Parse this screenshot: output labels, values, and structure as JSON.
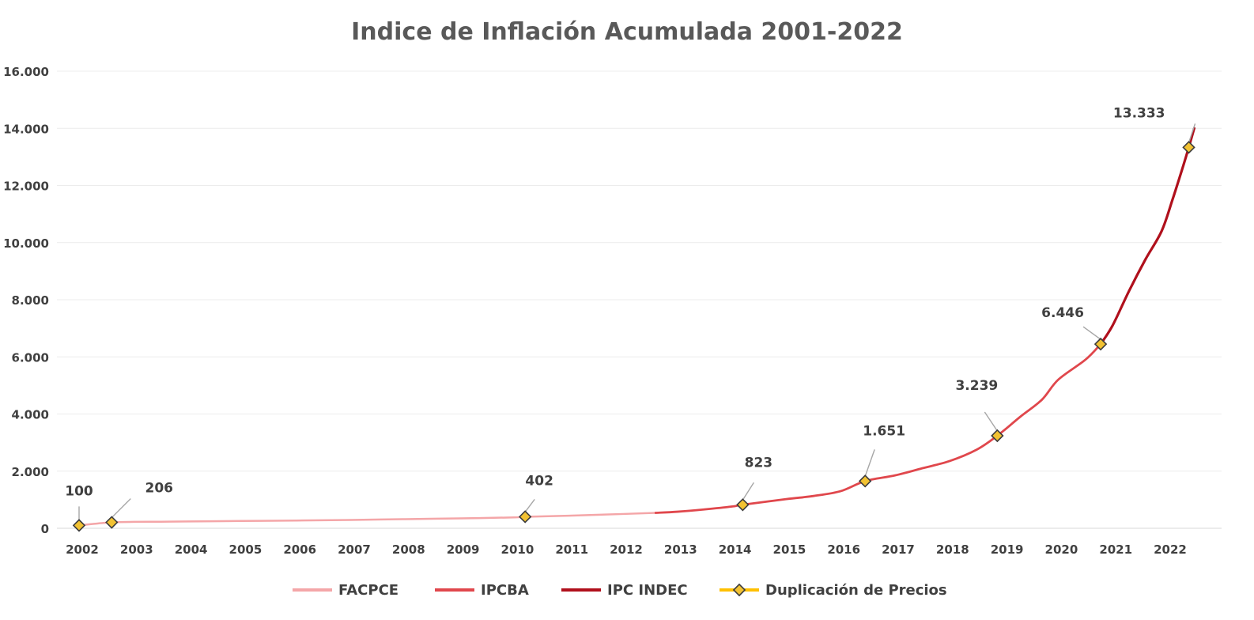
{
  "chart_data": {
    "type": "line",
    "title": "Indice de Inflación Acumulada 2001-2022",
    "xlabel": "",
    "ylabel": "",
    "ylim": [
      0,
      16000
    ],
    "xlim": [
      2002,
      2023
    ],
    "grid": true,
    "legend_position": "bottom",
    "y_ticks": [
      0,
      2000,
      4000,
      6000,
      8000,
      10000,
      12000,
      14000,
      16000
    ],
    "y_tick_labels": [
      "0",
      "2.000",
      "4.000",
      "6.000",
      "8.000",
      "10.000",
      "12.000",
      "14.000",
      "16.000"
    ],
    "x_ticks": [
      2002,
      2003,
      2004,
      2005,
      2006,
      2007,
      2008,
      2009,
      2010,
      2011,
      2012,
      2013,
      2014,
      2015,
      2016,
      2017,
      2018,
      2019,
      2020,
      2021,
      2022
    ],
    "x_tick_labels": [
      "2002",
      "2003",
      "2004",
      "2005",
      "2006",
      "2007",
      "2008",
      "2009",
      "2010",
      "2011",
      "2012",
      "2013",
      "2014",
      "2015",
      "2016",
      "2017",
      "2018",
      "2019",
      "2020",
      "2021",
      "2022"
    ],
    "series": [
      {
        "name": "FACPCE",
        "color": "#f4a6a8",
        "x": [
          2002.0,
          2002.3,
          2002.6,
          2003.0,
          2003.5,
          2004.0,
          2005.0,
          2006.0,
          2007.0,
          2008.0,
          2009.0,
          2010.0,
          2010.2,
          2011.0,
          2012.0,
          2012.6
        ],
        "y": [
          100,
          160,
          206,
          225,
          230,
          240,
          255,
          270,
          290,
          320,
          345,
          380,
          402,
          440,
          500,
          540
        ]
      },
      {
        "name": "IPCBA",
        "color": "#e0474c",
        "x": [
          2012.6,
          2013.0,
          2013.5,
          2014.0,
          2014.2,
          2015.0,
          2015.5,
          2016.0,
          2016.45,
          2017.0,
          2017.5,
          2018.0,
          2018.5,
          2018.88,
          2019.3,
          2019.7,
          2020.0,
          2020.5,
          2020.78
        ],
        "y": [
          540,
          580,
          660,
          760,
          823,
          1020,
          1130,
          1300,
          1651,
          1850,
          2100,
          2350,
          2750,
          3239,
          3900,
          4500,
          5200,
          5900,
          6446
        ]
      },
      {
        "name": "IPC INDEC",
        "color": "#b0101c",
        "x": [
          2020.78,
          2021.0,
          2021.3,
          2021.6,
          2021.9,
          2022.1,
          2022.3,
          2022.4,
          2022.5
        ],
        "y": [
          6446,
          7100,
          8300,
          9400,
          10400,
          11500,
          12700,
          13333,
          14000
        ]
      }
    ],
    "duplication_points": {
      "name": "Duplicación de Precios",
      "marker_color": "#f2c232",
      "line_color": "#ffc000",
      "points": [
        {
          "x": 2002.0,
          "y": 100,
          "label": "100"
        },
        {
          "x": 2002.6,
          "y": 206,
          "label": "206"
        },
        {
          "x": 2010.2,
          "y": 402,
          "label": "402"
        },
        {
          "x": 2014.2,
          "y": 823,
          "label": "823"
        },
        {
          "x": 2016.45,
          "y": 1651,
          "label": "1.651"
        },
        {
          "x": 2018.88,
          "y": 3239,
          "label": "3.239"
        },
        {
          "x": 2020.78,
          "y": 6446,
          "label": "6.446"
        },
        {
          "x": 2022.4,
          "y": 13333,
          "label": "13.333"
        }
      ]
    }
  }
}
